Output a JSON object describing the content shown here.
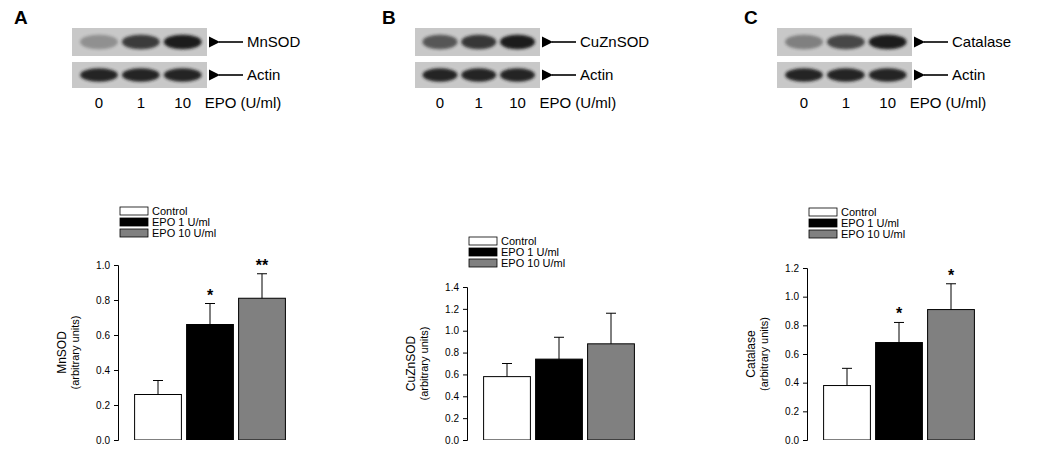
{
  "chart_data": [
    {
      "type": "bar",
      "panel_label": "A",
      "blot": {
        "target": "MnSOD",
        "loading": "Actin",
        "lanes": [
          0,
          1,
          10
        ],
        "lanes_title": "EPO (U/ml)"
      },
      "y_label": [
        "MnSOD",
        "(arbitrary units)"
      ],
      "categories": [
        null
      ],
      "series": [
        {
          "name": "Control",
          "color": "#ffffff",
          "values": [
            0.26
          ],
          "errors": [
            0.08
          ]
        },
        {
          "name": "EPO 1 U/ml",
          "color": "#000000",
          "values": [
            0.66
          ],
          "errors": [
            0.12
          ],
          "annotation": "*"
        },
        {
          "name": "EPO 10 U/ml",
          "color": "#808080",
          "values": [
            0.81
          ],
          "errors": [
            0.14
          ],
          "annotation": "**"
        }
      ],
      "ylim": [
        0,
        1
      ],
      "yticks": [
        {
          "value": 0,
          "label": "0.0"
        },
        {
          "value": 0.2,
          "label": "0.2"
        },
        {
          "value": 0.4,
          "label": "0.4"
        },
        {
          "value": 0.6,
          "label": "0.6"
        },
        {
          "value": 0.8,
          "label": "0.8"
        },
        {
          "value": 1,
          "label": "1.0"
        }
      ],
      "legend": "top-left"
    },
    {
      "type": "bar",
      "panel_label": "B",
      "blot": {
        "target": "CuZnSOD",
        "loading": "Actin",
        "lanes": [
          0,
          1,
          10
        ],
        "lanes_title": "EPO (U/ml)"
      },
      "y_label": [
        "CuZnSOD",
        "(arbitrary units)"
      ],
      "categories": [
        null
      ],
      "series": [
        {
          "name": "Control",
          "color": "#ffffff",
          "values": [
            0.58
          ],
          "errors": [
            0.12
          ]
        },
        {
          "name": "EPO 1 U/ml",
          "color": "#000000",
          "values": [
            0.74
          ],
          "errors": [
            0.2
          ]
        },
        {
          "name": "EPO 10 U/ml",
          "color": "#808080",
          "values": [
            0.88
          ],
          "errors": [
            0.28
          ]
        }
      ],
      "ylim": [
        0,
        1.4
      ],
      "yticks": [
        {
          "value": 0,
          "label": "0.0"
        },
        {
          "value": 0.2,
          "label": "0.2"
        },
        {
          "value": 0.4,
          "label": "0.4"
        },
        {
          "value": 0.6,
          "label": "0.6"
        },
        {
          "value": 0.8,
          "label": "0.8"
        },
        {
          "value": 1,
          "label": "1.0"
        },
        {
          "value": 1.2,
          "label": "1.2"
        },
        {
          "value": 1.4,
          "label": "1.4"
        }
      ],
      "legend": "top-left"
    },
    {
      "type": "bar",
      "panel_label": "C",
      "blot": {
        "target": "Catalase",
        "loading": "Actin",
        "lanes": [
          0,
          1,
          10
        ],
        "lanes_title": "EPO (U/ml)"
      },
      "y_label": [
        "Catalase",
        "(arbitrary units)"
      ],
      "categories": [
        null
      ],
      "series": [
        {
          "name": "Control",
          "color": "#ffffff",
          "values": [
            0.38
          ],
          "errors": [
            0.12
          ]
        },
        {
          "name": "EPO 1 U/ml",
          "color": "#000000",
          "values": [
            0.68
          ],
          "errors": [
            0.14
          ],
          "annotation": "*"
        },
        {
          "name": "EPO 10 U/ml",
          "color": "#808080",
          "values": [
            0.91
          ],
          "errors": [
            0.18
          ],
          "annotation": "*"
        }
      ],
      "ylim": [
        0,
        1.2
      ],
      "yticks": [
        {
          "value": 0,
          "label": "0.0"
        },
        {
          "value": 0.2,
          "label": "0.2"
        },
        {
          "value": 0.4,
          "label": "0.4"
        },
        {
          "value": 0.6,
          "label": "0.6"
        },
        {
          "value": 0.8,
          "label": "0.8"
        },
        {
          "value": 1,
          "label": "1.0"
        },
        {
          "value": 1.2,
          "label": "1.2"
        }
      ],
      "legend": "top-left"
    }
  ]
}
